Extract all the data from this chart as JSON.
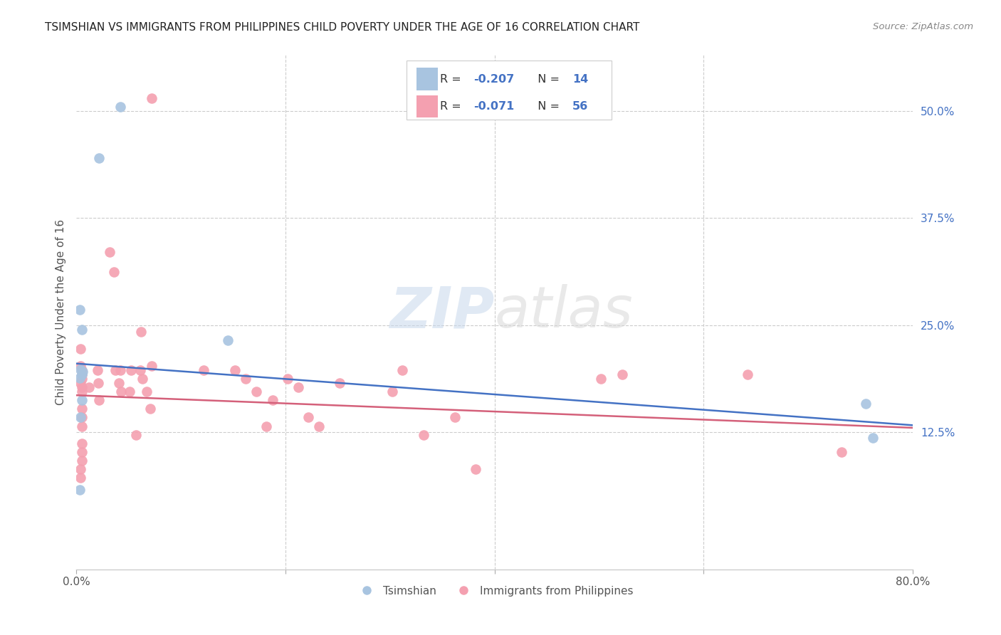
{
  "title": "TSIMSHIAN VS IMMIGRANTS FROM PHILIPPINES CHILD POVERTY UNDER THE AGE OF 16 CORRELATION CHART",
  "source": "Source: ZipAtlas.com",
  "ylabel": "Child Poverty Under the Age of 16",
  "right_ytick_labels": [
    "50.0%",
    "37.5%",
    "25.0%",
    "12.5%"
  ],
  "right_ytick_values": [
    0.5,
    0.375,
    0.25,
    0.125
  ],
  "xmin": 0.0,
  "xmax": 0.8,
  "ymin": -0.035,
  "ymax": 0.565,
  "blue_color": "#a8c4e0",
  "pink_color": "#f4a0b0",
  "blue_line_color": "#4472c4",
  "pink_line_color": "#d4607a",
  "text_color": "#333333",
  "value_color": "#4472c4",
  "grid_color": "#cccccc",
  "tsimshian_x": [
    0.022,
    0.042,
    0.003,
    0.005,
    0.004,
    0.006,
    0.005,
    0.003,
    0.005,
    0.004,
    0.003,
    0.145,
    0.755,
    0.762
  ],
  "tsimshian_y": [
    0.445,
    0.505,
    0.268,
    0.245,
    0.198,
    0.196,
    0.192,
    0.188,
    0.162,
    0.142,
    0.058,
    0.232,
    0.158,
    0.118
  ],
  "philippines_x": [
    0.072,
    0.004,
    0.004,
    0.005,
    0.005,
    0.005,
    0.004,
    0.005,
    0.005,
    0.005,
    0.005,
    0.005,
    0.005,
    0.005,
    0.005,
    0.004,
    0.004,
    0.012,
    0.02,
    0.021,
    0.022,
    0.032,
    0.036,
    0.037,
    0.042,
    0.041,
    0.043,
    0.052,
    0.051,
    0.057,
    0.062,
    0.061,
    0.063,
    0.067,
    0.072,
    0.071,
    0.122,
    0.152,
    0.162,
    0.172,
    0.182,
    0.188,
    0.202,
    0.212,
    0.222,
    0.232,
    0.252,
    0.302,
    0.312,
    0.332,
    0.362,
    0.382,
    0.502,
    0.522,
    0.642,
    0.732
  ],
  "philippines_y": [
    0.515,
    0.222,
    0.202,
    0.197,
    0.192,
    0.187,
    0.182,
    0.177,
    0.172,
    0.152,
    0.142,
    0.132,
    0.112,
    0.102,
    0.092,
    0.082,
    0.072,
    0.177,
    0.197,
    0.182,
    0.162,
    0.335,
    0.312,
    0.197,
    0.197,
    0.182,
    0.172,
    0.197,
    0.172,
    0.122,
    0.242,
    0.197,
    0.187,
    0.172,
    0.202,
    0.152,
    0.197,
    0.197,
    0.187,
    0.172,
    0.132,
    0.162,
    0.187,
    0.177,
    0.142,
    0.132,
    0.182,
    0.172,
    0.197,
    0.122,
    0.142,
    0.082,
    0.187,
    0.192,
    0.192,
    0.102
  ],
  "blue_line_x0": 0.0,
  "blue_line_y0": 0.205,
  "blue_line_x1": 0.8,
  "blue_line_y1": 0.133,
  "pink_line_x0": 0.0,
  "pink_line_y0": 0.168,
  "pink_line_x1": 0.8,
  "pink_line_y1": 0.13
}
